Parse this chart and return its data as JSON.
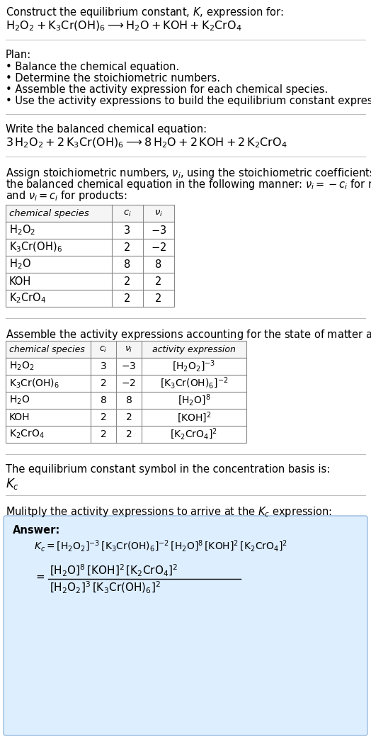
{
  "title_line1": "Construct the equilibrium constant, $K$, expression for:",
  "title_line2": "$\\mathrm{H_2O_2 + K_3Cr(OH)_6 \\longrightarrow H_2O + KOH + K_2CrO_4}$",
  "plan_header": "Plan:",
  "plan_items": [
    "\\textbullet  Balance the chemical equation.",
    "\\textbullet  Determine the stoichiometric numbers.",
    "\\textbullet  Assemble the activity expression for each chemical species.",
    "\\textbullet  Use the activity expressions to build the equilibrium constant expression."
  ],
  "plan_items_plain": [
    "• Balance the chemical equation.",
    "• Determine the stoichiometric numbers.",
    "• Assemble the activity expression for each chemical species.",
    "• Use the activity expressions to build the equilibrium constant expression."
  ],
  "balanced_header": "Write the balanced chemical equation:",
  "balanced_eq": "$3\\,\\mathrm{H_2O_2} + 2\\,\\mathrm{K_3Cr(OH)_6} \\longrightarrow 8\\,\\mathrm{H_2O} + 2\\,\\mathrm{KOH} + 2\\,\\mathrm{K_2CrO_4}$",
  "stoich_header_parts": [
    "Assign stoichiometric numbers, $\\nu_i$, using the stoichiometric coefficients, $c_i$, from",
    "the balanced chemical equation in the following manner: $\\nu_i = -c_i$ for reactants",
    "and $\\nu_i = c_i$ for products:"
  ],
  "table1_cols": [
    "chemical species",
    "$c_i$",
    "$\\nu_i$"
  ],
  "table1_rows": [
    [
      "$\\mathrm{H_2O_2}$",
      "3",
      "$-3$"
    ],
    [
      "$\\mathrm{K_3Cr(OH)_6}$",
      "2",
      "$-2$"
    ],
    [
      "$\\mathrm{H_2O}$",
      "8",
      "8"
    ],
    [
      "KOH",
      "2",
      "2"
    ],
    [
      "$\\mathrm{K_2CrO_4}$",
      "2",
      "2"
    ]
  ],
  "activity_header": "Assemble the activity expressions accounting for the state of matter and $\\nu_i$:",
  "table2_cols": [
    "chemical species",
    "$c_i$",
    "$\\nu_i$",
    "activity expression"
  ],
  "table2_rows": [
    [
      "$\\mathrm{H_2O_2}$",
      "3",
      "$-3$",
      "$[\\mathrm{H_2O_2}]^{-3}$"
    ],
    [
      "$\\mathrm{K_3Cr(OH)_6}$",
      "2",
      "$-2$",
      "$[\\mathrm{K_3Cr(OH)_6}]^{-2}$"
    ],
    [
      "$\\mathrm{H_2O}$",
      "8",
      "8",
      "$[\\mathrm{H_2O}]^{8}$"
    ],
    [
      "KOH",
      "2",
      "2",
      "$[\\mathrm{KOH}]^{2}$"
    ],
    [
      "$\\mathrm{K_2CrO_4}$",
      "2",
      "2",
      "$[\\mathrm{K_2CrO_4}]^{2}$"
    ]
  ],
  "kc_header": "The equilibrium constant symbol in the concentration basis is:",
  "kc_symbol": "$K_c$",
  "multiply_header": "Mulitply the activity expressions to arrive at the $K_c$ expression:",
  "answer_label": "Answer:",
  "answer_line1": "$K_c = [\\mathrm{H_2O_2}]^{-3}\\,[\\mathrm{K_3Cr(OH)_6}]^{-2}\\,[\\mathrm{H_2O}]^{8}\\,[\\mathrm{KOH}]^{2}\\,[\\mathrm{K_2CrO_4}]^{2}$",
  "answer_eq_sign": "$=$",
  "answer_numer": "$[\\mathrm{H_2O}]^{8}\\,[\\mathrm{KOH}]^{2}\\,[\\mathrm{K_2CrO_4}]^{2}$",
  "answer_denom": "$[\\mathrm{H_2O_2}]^{3}\\,[\\mathrm{K_3Cr(OH)_6}]^{2}$",
  "bg_color": "#ffffff",
  "text_color": "#000000",
  "answer_box_color": "#ddeeff",
  "answer_box_border": "#99bbdd"
}
